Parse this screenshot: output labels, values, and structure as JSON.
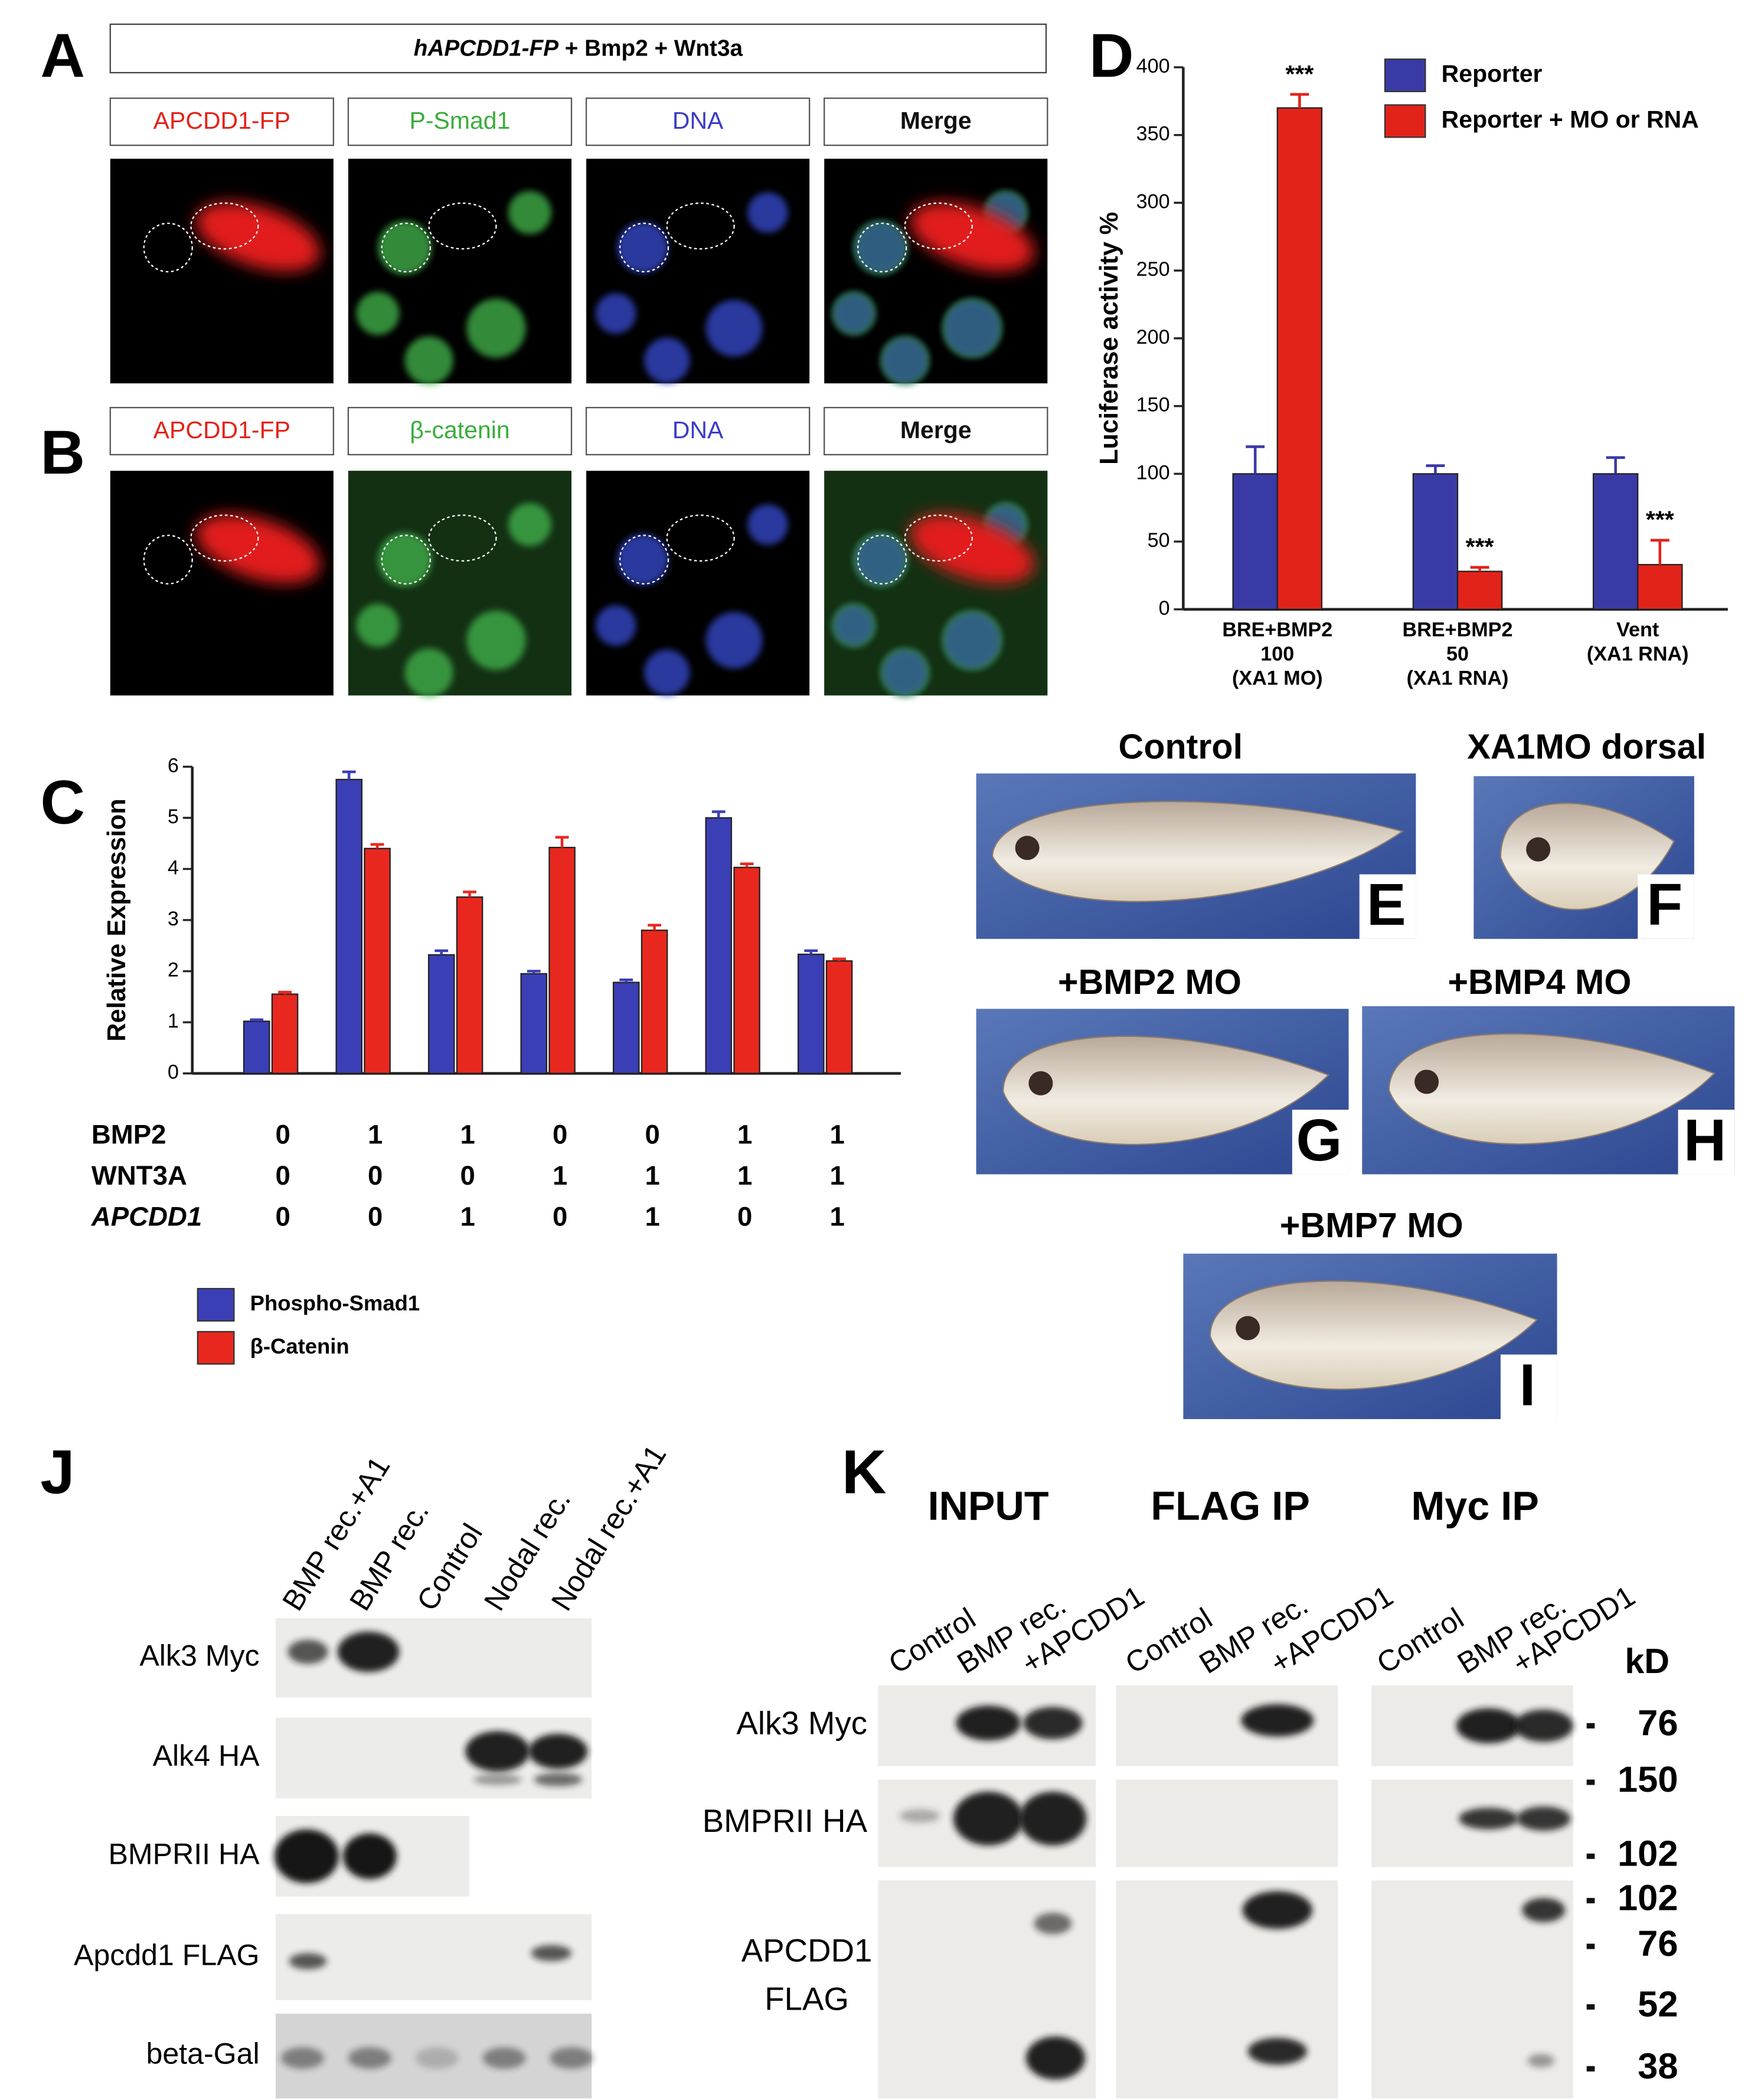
{
  "panel_labels": [
    "A",
    "B",
    "C",
    "D",
    "J",
    "K"
  ],
  "microscopy": {
    "header": [
      "hAPCDD1-FP",
      " + Bmp2 + Wnt3a"
    ],
    "rows": [
      [
        "APCDD1-FP",
        "P-Smad1",
        "DNA",
        "Merge"
      ],
      [
        "APCDD1-FP",
        "β-catenin",
        "DNA",
        "Merge"
      ]
    ]
  },
  "chart_data": [
    {
      "type": "bar",
      "ylabel": "Luciferase activity %",
      "categories": [
        [
          "BRE+BMP2",
          "100",
          "(XA1 MO)"
        ],
        [
          "BRE+BMP2",
          "50",
          "(XA1 RNA)"
        ],
        [
          "Vent",
          "(XA1 RNA)"
        ]
      ],
      "series": [
        {
          "name": "Reporter",
          "color": "#3a3aa6",
          "values": [
            100,
            100,
            100
          ],
          "errors": [
            20,
            6,
            12
          ]
        },
        {
          "name": "Reporter + MO or RNA",
          "color": "#e2231a",
          "values": [
            370,
            28,
            33
          ],
          "errors": [
            10,
            3,
            18
          ]
        }
      ],
      "annotations": [
        "***",
        "***",
        "***"
      ],
      "ylim": [
        0,
        400
      ],
      "yticks": [
        0,
        50,
        100,
        150,
        200,
        250,
        300,
        350,
        400
      ]
    },
    {
      "type": "bar",
      "ylabel": "Relative Expression",
      "categories": [
        null,
        null,
        null,
        null,
        null,
        null,
        null
      ],
      "series": [
        {
          "name": "Phospho-Smad1",
          "color": "#3b3fb5",
          "values": [
            1.02,
            5.75,
            2.32,
            1.95,
            1.78,
            5.0,
            2.33
          ],
          "errors": [
            0.03,
            0.15,
            0.08,
            0.05,
            0.05,
            0.12,
            0.07
          ]
        },
        {
          "name": "β-Catenin",
          "color": "#e8281e",
          "values": [
            1.55,
            4.4,
            3.45,
            4.42,
            2.8,
            4.03,
            2.2
          ],
          "errors": [
            0.04,
            0.08,
            0.1,
            0.2,
            0.1,
            0.07,
            0.04
          ]
        }
      ],
      "ylim": [
        0,
        6
      ],
      "yticks": [
        0,
        1,
        2,
        3,
        4,
        5,
        6
      ]
    }
  ],
  "condition_table": {
    "rows": [
      {
        "label": "BMP2",
        "values": [
          0,
          1,
          1,
          0,
          0,
          1,
          1
        ]
      },
      {
        "label": "WNT3A",
        "values": [
          0,
          0,
          0,
          1,
          1,
          1,
          1
        ]
      },
      {
        "label": "APCDD1",
        "values": [
          0,
          0,
          1,
          0,
          1,
          0,
          1
        ]
      }
    ]
  },
  "embryos": [
    {
      "title": "Control",
      "letter": "E"
    },
    {
      "title": "XA1MO dorsal",
      "letter": "F"
    },
    {
      "title": "+BMP2 MO",
      "letter": "G"
    },
    {
      "title": "+BMP4 MO",
      "letter": "H"
    },
    {
      "title": "+BMP7 MO",
      "letter": "I"
    }
  ],
  "blot_J": {
    "lanes": [
      "BMP rec.+A1",
      "BMP rec.",
      "Control",
      "Nodal rec.",
      "Nodal rec.+A1"
    ],
    "rows": [
      "Alk3 Myc",
      "Alk4 HA",
      "BMPRII HA",
      "Apcdd1 FLAG",
      "beta-Gal"
    ]
  },
  "blot_K": {
    "groups": [
      "INPUT",
      "FLAG IP",
      "Myc IP"
    ],
    "lanes": [
      "Control",
      "BMP rec.",
      "+APCDD1"
    ],
    "rows": [
      [
        "Alk3 Myc"
      ],
      [
        "BMPRII HA"
      ],
      [
        "APCDD1",
        "FLAG"
      ]
    ],
    "unit": "kD",
    "markers": [
      76,
      150,
      102,
      102,
      76,
      52,
      38
    ]
  }
}
